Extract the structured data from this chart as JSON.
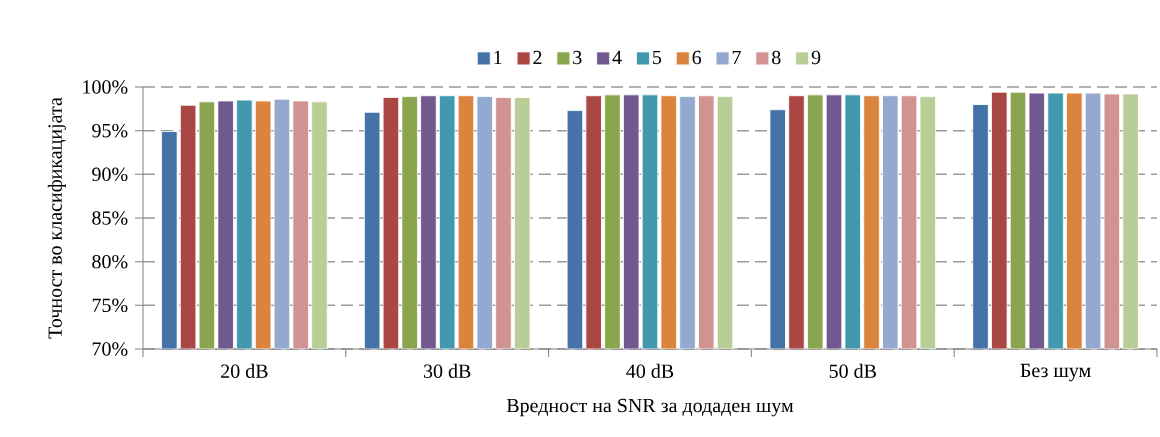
{
  "chart_data": {
    "type": "bar",
    "xlabel": "Вредност на SNR за додаден шум",
    "ylabel": "Точност во класификацијата",
    "categories": [
      "20 dB",
      "30 dB",
      "40 dB",
      "50 dB",
      "Без шум"
    ],
    "series": [
      {
        "name": "1",
        "color": "#4572a7",
        "values": [
          94.9,
          97.1,
          97.3,
          97.4,
          98.0
        ]
      },
      {
        "name": "2",
        "color": "#aa4643",
        "values": [
          97.9,
          98.8,
          99.0,
          99.0,
          99.4
        ]
      },
      {
        "name": "3",
        "color": "#89a54e",
        "values": [
          98.3,
          98.9,
          99.1,
          99.1,
          99.4
        ]
      },
      {
        "name": "4",
        "color": "#71588f",
        "values": [
          98.4,
          99.0,
          99.1,
          99.1,
          99.3
        ]
      },
      {
        "name": "5",
        "color": "#4198af",
        "values": [
          98.5,
          99.0,
          99.1,
          99.1,
          99.3
        ]
      },
      {
        "name": "6",
        "color": "#db843d",
        "values": [
          98.4,
          99.0,
          99.0,
          99.0,
          99.3
        ]
      },
      {
        "name": "7",
        "color": "#93a9cf",
        "values": [
          98.6,
          98.9,
          98.9,
          99.0,
          99.3
        ]
      },
      {
        "name": "8",
        "color": "#d19392",
        "values": [
          98.4,
          98.8,
          99.0,
          99.0,
          99.2
        ]
      },
      {
        "name": "9",
        "color": "#b9cd96",
        "values": [
          98.3,
          98.8,
          98.9,
          98.9,
          99.2
        ]
      }
    ],
    "ylim": [
      70,
      100
    ],
    "yticks": [
      {
        "value": 70,
        "label": "70%"
      },
      {
        "value": 75,
        "label": "75%"
      },
      {
        "value": 80,
        "label": "80%"
      },
      {
        "value": 85,
        "label": "85%"
      },
      {
        "value": 90,
        "label": "90%"
      },
      {
        "value": 95,
        "label": "95%"
      },
      {
        "value": 100,
        "label": "100%"
      }
    ],
    "grid": "y",
    "legend": "top"
  }
}
